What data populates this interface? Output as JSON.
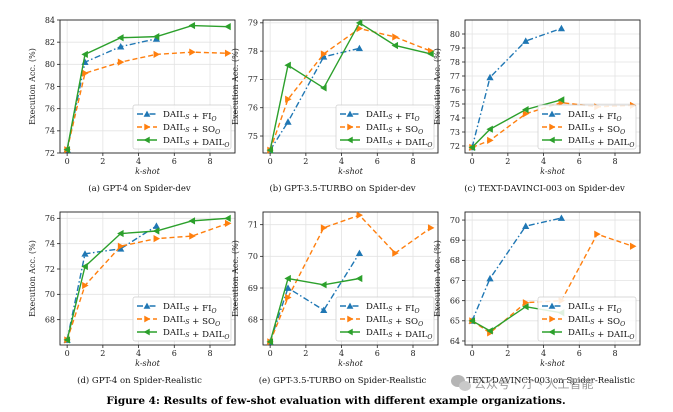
{
  "figure_caption": "Figure 4: Results of few-shot evaluation with different example organizations.",
  "watermark": "公众号 · 汀丶人工智能",
  "colors": {
    "blue": "#1f77b4",
    "orange": "#ff7f0e",
    "green": "#2ca02c"
  },
  "chart_data": [
    {
      "type": "line",
      "caption": "(a) GPT-4 on Spider-dev",
      "xlabel": "k-shot",
      "ylabel": "Execution Acc. (%)",
      "xlim": [
        -0.4,
        9.4
      ],
      "ylim": [
        72,
        84
      ],
      "xticks": [
        0,
        2,
        4,
        6,
        8
      ],
      "yticks": [
        72,
        74,
        76,
        78,
        80,
        82,
        84
      ],
      "grid": true,
      "legend_position": "lower-right",
      "series": [
        {
          "name": "DAIL_S + FI_O",
          "color": "#1f77b4",
          "marker": "triangle-up",
          "dash": "dashdot",
          "x": [
            0,
            1,
            3,
            5
          ],
          "y": [
            72.3,
            80.2,
            81.6,
            82.3
          ]
        },
        {
          "name": "DAIL_S + SO_O",
          "color": "#ff7f0e",
          "marker": "triangle-right",
          "dash": "dashed",
          "x": [
            0,
            1,
            3,
            5,
            7,
            9
          ],
          "y": [
            72.3,
            79.2,
            80.2,
            80.9,
            81.1,
            81.0
          ]
        },
        {
          "name": "DAIL_S + DAIL_O",
          "color": "#2ca02c",
          "marker": "triangle-left",
          "dash": "solid",
          "x": [
            0,
            1,
            3,
            5,
            7,
            9
          ],
          "y": [
            72.3,
            80.9,
            82.4,
            82.5,
            83.5,
            83.4
          ]
        }
      ]
    },
    {
      "type": "line",
      "caption": "(b) GPT-3.5-TURBO on Spider-dev",
      "xlabel": "k-shot",
      "ylabel": "Execution Acc. (%)",
      "xlim": [
        -0.4,
        9.4
      ],
      "ylim": [
        74.4,
        79.1
      ],
      "xticks": [
        0,
        2,
        4,
        6,
        8
      ],
      "yticks": [
        75,
        76,
        77,
        78,
        79
      ],
      "grid": true,
      "legend_position": "lower-right",
      "series": [
        {
          "name": "DAIL_S + FI_O",
          "color": "#1f77b4",
          "marker": "triangle-up",
          "dash": "dashdot",
          "x": [
            0,
            1,
            3,
            5
          ],
          "y": [
            74.5,
            75.5,
            77.8,
            78.1
          ]
        },
        {
          "name": "DAIL_S + SO_O",
          "color": "#ff7f0e",
          "marker": "triangle-right",
          "dash": "dashed",
          "x": [
            0,
            1,
            3,
            5,
            7,
            9
          ],
          "y": [
            74.5,
            76.3,
            77.9,
            78.8,
            78.5,
            78.0
          ]
        },
        {
          "name": "DAIL_S + DAIL_O",
          "color": "#2ca02c",
          "marker": "triangle-left",
          "dash": "solid",
          "x": [
            0,
            1,
            3,
            5,
            7,
            9
          ],
          "y": [
            74.5,
            77.5,
            76.7,
            79.0,
            78.2,
            77.9
          ]
        }
      ]
    },
    {
      "type": "line",
      "caption": "(c) TEXT-DAVINCI-003 on Spider-dev",
      "xlabel": "k-shot",
      "ylabel": "Execution Acc. (%)",
      "xlim": [
        -0.4,
        9.4
      ],
      "ylim": [
        71.5,
        81
      ],
      "xticks": [
        0,
        2,
        4,
        6,
        8
      ],
      "yticks": [
        72,
        73,
        74,
        75,
        76,
        77,
        78,
        79,
        80
      ],
      "grid": true,
      "legend_position": "lower-right",
      "series": [
        {
          "name": "DAIL_S + FI_O",
          "color": "#1f77b4",
          "marker": "triangle-up",
          "dash": "dashdot",
          "x": [
            0,
            1,
            3,
            5
          ],
          "y": [
            71.9,
            76.9,
            79.5,
            80.4
          ]
        },
        {
          "name": "DAIL_S + SO_O",
          "color": "#ff7f0e",
          "marker": "triangle-right",
          "dash": "dashed",
          "x": [
            0,
            1,
            3,
            5,
            7,
            9
          ],
          "y": [
            71.9,
            72.4,
            74.3,
            75.1,
            74.8,
            74.9
          ]
        },
        {
          "name": "DAIL_S + DAIL_O",
          "color": "#2ca02c",
          "marker": "triangle-left",
          "dash": "solid",
          "x": [
            0,
            1,
            3,
            5
          ],
          "y": [
            71.9,
            73.2,
            74.6,
            75.3
          ]
        }
      ]
    },
    {
      "type": "line",
      "caption": "(d) GPT-4 on Spider-Realistic",
      "xlabel": "k-shot",
      "ylabel": "Execution Acc. (%)",
      "xlim": [
        -0.4,
        9.4
      ],
      "ylim": [
        66,
        76.5
      ],
      "xticks": [
        0,
        2,
        4,
        6,
        8
      ],
      "yticks": [
        68,
        70,
        72,
        74,
        76
      ],
      "grid": true,
      "legend_position": "lower-right",
      "series": [
        {
          "name": "DAIL_S + FI_O",
          "color": "#1f77b4",
          "marker": "triangle-up",
          "dash": "dashdot",
          "x": [
            0,
            1,
            3,
            5
          ],
          "y": [
            66.4,
            73.2,
            73.6,
            75.4
          ]
        },
        {
          "name": "DAIL_S + SO_O",
          "color": "#ff7f0e",
          "marker": "triangle-right",
          "dash": "dashed",
          "x": [
            0,
            1,
            3,
            5,
            7,
            9
          ],
          "y": [
            66.4,
            70.7,
            73.8,
            74.4,
            74.6,
            75.6
          ]
        },
        {
          "name": "DAIL_S + DAIL_O",
          "color": "#2ca02c",
          "marker": "triangle-left",
          "dash": "solid",
          "x": [
            0,
            1,
            3,
            5,
            7,
            9
          ],
          "y": [
            66.4,
            72.2,
            74.8,
            75.0,
            75.8,
            76.0
          ]
        }
      ]
    },
    {
      "type": "line",
      "caption": "(e) GPT-3.5-TURBO on Spider-Realistic",
      "xlabel": "k-shot",
      "ylabel": "Execution Acc. (%)",
      "xlim": [
        -0.4,
        9.4
      ],
      "ylim": [
        67.2,
        71.4
      ],
      "xticks": [
        0,
        2,
        4,
        6,
        8
      ],
      "yticks": [
        68,
        69,
        70,
        71
      ],
      "grid": true,
      "legend_position": "lower-right",
      "series": [
        {
          "name": "DAIL_S + FI_O",
          "color": "#1f77b4",
          "marker": "triangle-up",
          "dash": "dashdot",
          "x": [
            0,
            1,
            3,
            5
          ],
          "y": [
            67.3,
            69.0,
            68.3,
            70.1
          ]
        },
        {
          "name": "DAIL_S + SO_O",
          "color": "#ff7f0e",
          "marker": "triangle-right",
          "dash": "dashed",
          "x": [
            0,
            1,
            3,
            5,
            7,
            9
          ],
          "y": [
            67.3,
            68.7,
            70.9,
            71.3,
            70.1,
            70.9
          ]
        },
        {
          "name": "DAIL_S + DAIL_O",
          "color": "#2ca02c",
          "marker": "triangle-left",
          "dash": "solid",
          "x": [
            0,
            1,
            3,
            5
          ],
          "y": [
            67.3,
            69.3,
            69.1,
            69.3
          ]
        }
      ]
    },
    {
      "type": "line",
      "caption": "(f) TEXT-DAVINCI-003 on Spider-Realistic",
      "xlabel": "k-shot",
      "ylabel": "Execution Acc. (%)",
      "xlim": [
        -0.4,
        9.4
      ],
      "ylim": [
        63.8,
        70.4
      ],
      "xticks": [
        0,
        2,
        4,
        6,
        8
      ],
      "yticks": [
        64,
        65,
        66,
        67,
        68,
        69,
        70
      ],
      "grid": true,
      "legend_position": "lower-right",
      "series": [
        {
          "name": "DAIL_S + FI_O",
          "color": "#1f77b4",
          "marker": "triangle-up",
          "dash": "dashdot",
          "x": [
            0,
            1,
            3,
            5
          ],
          "y": [
            65.0,
            67.1,
            69.7,
            70.1
          ]
        },
        {
          "name": "DAIL_S + SO_O",
          "color": "#ff7f0e",
          "marker": "triangle-right",
          "dash": "dashed",
          "x": [
            0,
            1,
            3,
            5,
            7,
            9
          ],
          "y": [
            65.0,
            64.4,
            65.9,
            66.0,
            69.3,
            68.7
          ]
        },
        {
          "name": "DAIL_S + DAIL_O",
          "color": "#2ca02c",
          "marker": "triangle-left",
          "dash": "solid",
          "x": [
            0,
            1,
            3,
            5
          ],
          "y": [
            65.0,
            64.5,
            65.7,
            65.4
          ]
        }
      ]
    }
  ]
}
